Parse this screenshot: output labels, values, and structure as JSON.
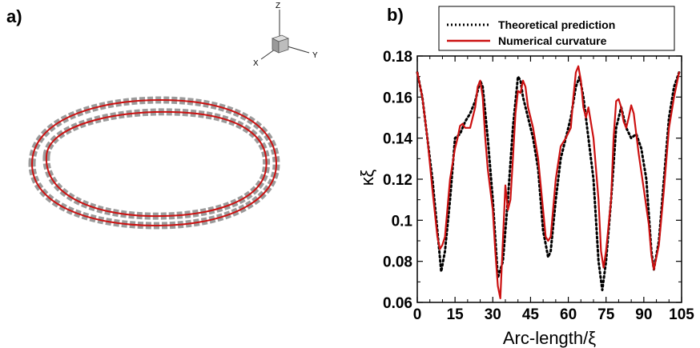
{
  "panels": {
    "a_label": "a)",
    "b_label": "b)"
  },
  "triad": {
    "z": "Z",
    "x": "X",
    "y": "Y"
  },
  "colors": {
    "theory": "#000000",
    "numerical": "#cc1111",
    "tube": "#8a8a8a",
    "centerline": "#cc1111"
  },
  "chart_data": {
    "type": "line",
    "title": "",
    "xlabel": "Arc-length/ξ",
    "ylabel": "κξ",
    "xlim": [
      0,
      105
    ],
    "ylim": [
      0.06,
      0.18
    ],
    "xticks": [
      0,
      15,
      30,
      45,
      60,
      75,
      90,
      105
    ],
    "xtick_labels": [
      "0",
      "15",
      "30",
      "45",
      "60",
      "75",
      "90",
      "105"
    ],
    "yticks": [
      0.06,
      0.08,
      0.1,
      0.12,
      0.14,
      0.16,
      0.18
    ],
    "ytick_labels": [
      "0.06",
      "0.08",
      "0.1",
      "0.12",
      "0.14",
      "0.16",
      "0.18"
    ],
    "legend_position": "top",
    "series": [
      {
        "name": "Theoretical prediction",
        "style": "dotted",
        "color": "#000000",
        "x": [
          0,
          2,
          4,
          6,
          8,
          9.5,
          11,
          13,
          15,
          17,
          19,
          21,
          23,
          25,
          26,
          28,
          30,
          32,
          34,
          36,
          38,
          40,
          41,
          42,
          44,
          46,
          48,
          50,
          52,
          53,
          55,
          57,
          59,
          61,
          63,
          64.5,
          66,
          68,
          70,
          72,
          73.5,
          75,
          77,
          79,
          81,
          83,
          85,
          87,
          89,
          91,
          93,
          94,
          96,
          98,
          100,
          102,
          104
        ],
        "y": [
          0.172,
          0.16,
          0.14,
          0.12,
          0.095,
          0.075,
          0.085,
          0.11,
          0.14,
          0.142,
          0.148,
          0.152,
          0.158,
          0.168,
          0.165,
          0.14,
          0.11,
          0.072,
          0.08,
          0.11,
          0.145,
          0.17,
          0.168,
          0.16,
          0.15,
          0.14,
          0.125,
          0.095,
          0.082,
          0.085,
          0.11,
          0.13,
          0.14,
          0.15,
          0.165,
          0.17,
          0.16,
          0.14,
          0.12,
          0.08,
          0.066,
          0.08,
          0.11,
          0.145,
          0.155,
          0.145,
          0.14,
          0.142,
          0.135,
          0.12,
          0.085,
          0.076,
          0.09,
          0.12,
          0.15,
          0.165,
          0.172
        ]
      },
      {
        "name": "Numerical curvature",
        "style": "solid",
        "color": "#cc1111",
        "x": [
          0,
          2,
          4,
          6,
          8,
          9,
          10,
          11,
          13,
          15,
          16,
          17,
          18,
          19,
          21,
          23,
          24,
          25,
          26,
          27,
          28,
          30,
          31,
          32,
          33,
          34,
          35,
          36,
          37,
          38,
          39,
          40,
          41,
          42,
          43,
          44,
          46,
          48,
          50,
          51,
          52,
          53,
          55,
          57,
          59,
          61,
          62,
          63,
          64,
          65,
          66,
          67,
          68,
          70,
          72,
          73,
          74,
          75,
          77,
          78,
          79,
          80,
          81,
          82,
          83,
          84,
          85,
          86,
          87,
          88,
          90,
          92,
          93,
          94,
          96,
          98,
          100,
          102,
          104
        ],
        "y": [
          0.172,
          0.16,
          0.14,
          0.115,
          0.092,
          0.086,
          0.088,
          0.092,
          0.12,
          0.135,
          0.14,
          0.146,
          0.147,
          0.145,
          0.145,
          0.155,
          0.165,
          0.168,
          0.16,
          0.14,
          0.125,
          0.105,
          0.085,
          0.068,
          0.062,
          0.09,
          0.117,
          0.105,
          0.11,
          0.13,
          0.152,
          0.163,
          0.162,
          0.168,
          0.165,
          0.155,
          0.145,
          0.13,
          0.105,
          0.092,
          0.09,
          0.092,
          0.12,
          0.136,
          0.14,
          0.145,
          0.16,
          0.172,
          0.175,
          0.168,
          0.155,
          0.15,
          0.155,
          0.14,
          0.11,
          0.085,
          0.077,
          0.085,
          0.11,
          0.14,
          0.158,
          0.159,
          0.155,
          0.148,
          0.145,
          0.15,
          0.156,
          0.152,
          0.142,
          0.132,
          0.115,
          0.098,
          0.083,
          0.076,
          0.088,
          0.115,
          0.145,
          0.16,
          0.172
        ]
      }
    ]
  }
}
